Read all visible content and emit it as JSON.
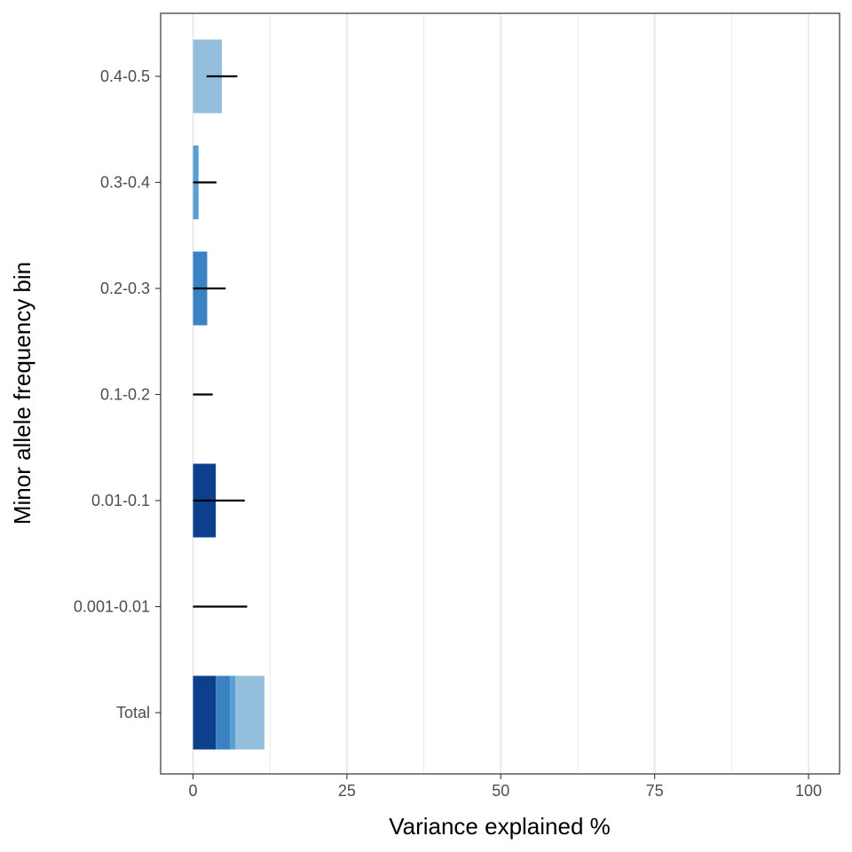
{
  "chart_data": {
    "type": "bar",
    "orientation": "horizontal",
    "xlabel": "Variance explained %",
    "ylabel": "Minor allele frequency bin",
    "xlim": [
      -9.5,
      105
    ],
    "x_ticks": [
      0,
      25,
      50,
      75,
      100
    ],
    "x_tick_labels": [
      "0",
      "25",
      "50",
      "75",
      "100"
    ],
    "grid": true,
    "categories": [
      "0.4-0.5",
      "0.3-0.4",
      "0.2-0.3",
      "0.1-0.2",
      "0.01-0.1",
      "0.001-0.01",
      "Total"
    ],
    "bars": [
      {
        "category": "0.4-0.5",
        "value": 4.7,
        "color": "#93BFDC",
        "error": [
          2.2,
          7.2
        ]
      },
      {
        "category": "0.3-0.4",
        "value": 0.9,
        "color": "#5A9FD4",
        "error": [
          0.0,
          3.8
        ]
      },
      {
        "category": "0.2-0.3",
        "value": 2.3,
        "color": "#3A82C1",
        "error": [
          0.0,
          5.3
        ]
      },
      {
        "category": "0.1-0.2",
        "value": 0.0,
        "color": "#2766AE",
        "error": [
          0.0,
          3.2
        ]
      },
      {
        "category": "0.01-0.1",
        "value": 3.7,
        "color": "#0D408C",
        "error": [
          0.0,
          8.4
        ]
      },
      {
        "category": "0.001-0.01",
        "value": 0.0,
        "color": "#082F6B",
        "error": [
          0.0,
          8.8
        ]
      }
    ],
    "total_stack": [
      {
        "from": 0.0,
        "to": 3.7,
        "color": "#0D408C"
      },
      {
        "from": 3.7,
        "to": 6.0,
        "color": "#3A82C1"
      },
      {
        "from": 6.0,
        "to": 6.9,
        "color": "#5A9FD4"
      },
      {
        "from": 6.9,
        "to": 11.6,
        "color": "#93BFDC"
      }
    ]
  }
}
